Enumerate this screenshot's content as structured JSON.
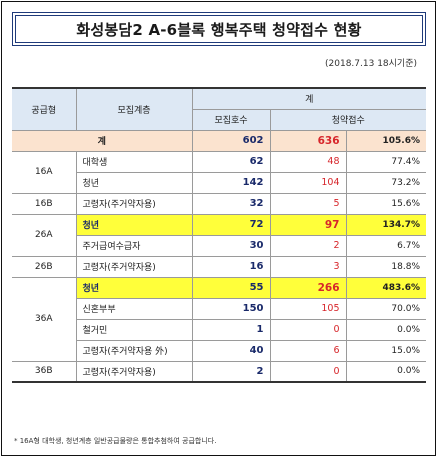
{
  "title": "화성봉담2 A-6블록 행복주택 청약접수 현황",
  "as_of": "(2018.7.13 18시기준)",
  "headers": {
    "supply_type": "공급형",
    "group": "모집계층",
    "total": "계",
    "recruit": "모집호수",
    "applications": "청약접수"
  },
  "total_row": {
    "label": "계",
    "recruit": "602",
    "applications": "636",
    "rate": "105.6%"
  },
  "rows": [
    {
      "type": "16A",
      "group": "대학생",
      "recruit": "62",
      "applications": "48",
      "rate": "77.4%",
      "highlight": false
    },
    {
      "type": "",
      "group": "청년",
      "recruit": "142",
      "applications": "104",
      "rate": "73.2%",
      "highlight": false
    },
    {
      "type": "16B",
      "group": "고령자(주거약자용)",
      "recruit": "32",
      "applications": "5",
      "rate": "15.6%",
      "highlight": false
    },
    {
      "type": "26A",
      "group": "청년",
      "recruit": "72",
      "applications": "97",
      "rate": "134.7%",
      "highlight": true
    },
    {
      "type": "",
      "group": "주거급여수급자",
      "recruit": "30",
      "applications": "2",
      "rate": "6.7%",
      "highlight": false
    },
    {
      "type": "26B",
      "group": "고령자(주거약자용)",
      "recruit": "16",
      "applications": "3",
      "rate": "18.8%",
      "highlight": false
    },
    {
      "type": "36A",
      "group": "청년",
      "recruit": "55",
      "applications": "266",
      "rate": "483.6%",
      "highlight": true
    },
    {
      "type": "",
      "group": "신혼부부",
      "recruit": "150",
      "applications": "105",
      "rate": "70.0%",
      "highlight": false
    },
    {
      "type": "",
      "group": "철거민",
      "recruit": "1",
      "applications": "0",
      "rate": "0.0%",
      "highlight": false
    },
    {
      "type": "",
      "group": "고령자(주거약자용 外)",
      "recruit": "40",
      "applications": "6",
      "rate": "15.0%",
      "highlight": false
    },
    {
      "type": "36B",
      "group": "고령자(주거약자용)",
      "recruit": "2",
      "applications": "0",
      "rate": "0.0%",
      "highlight": false
    }
  ],
  "footnote": "* 16A형 대학생, 청년계층 일반공급물량은 통합추첨하여 공급합니다."
}
